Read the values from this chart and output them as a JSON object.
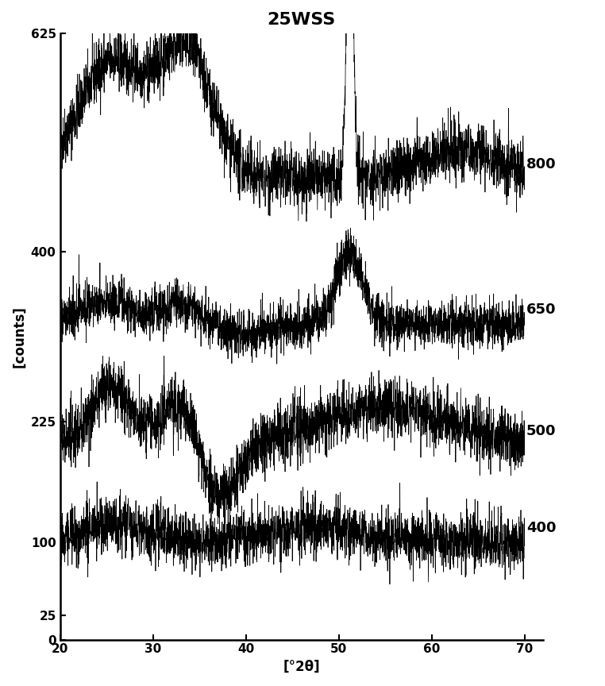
{
  "title": "25WSS",
  "xlabel": "[°2θ]",
  "ylabel": "[counts]",
  "x_min": 20,
  "x_max": 70,
  "y_min": 0,
  "y_max": 625,
  "y_ticks": [
    0,
    25,
    100,
    225,
    400,
    625
  ],
  "x_ticks": [
    20,
    30,
    40,
    50,
    60,
    70
  ],
  "labels": [
    "800",
    "650",
    "500",
    "400"
  ],
  "offsets": [
    375,
    225,
    100,
    0
  ],
  "background_color": "#ffffff",
  "line_color": "#000000",
  "seed": 42
}
